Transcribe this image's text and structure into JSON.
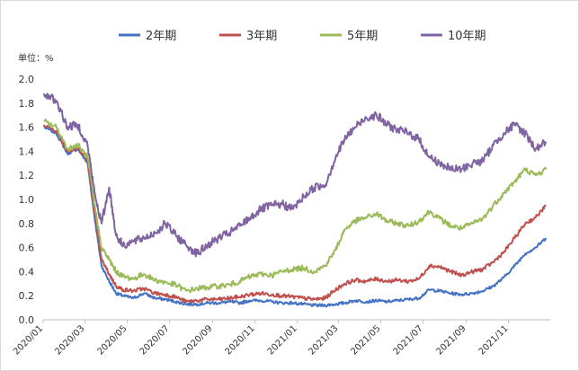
{
  "chart_data": {
    "type": "line",
    "unit_label": "单位：%",
    "ylim": [
      0,
      2.0
    ],
    "y_ticks": [
      "0.0",
      "0.2",
      "0.4",
      "0.6",
      "0.8",
      "1.0",
      "1.2",
      "1.4",
      "1.6",
      "1.8",
      "2.0"
    ],
    "x_start": "2020-01",
    "x_end": "2021-12",
    "x_ticks": [
      "2020/01",
      "2020/03",
      "2020/05",
      "2020/07",
      "2020/09",
      "2020/11",
      "2021/01",
      "2021/03",
      "2021/05",
      "2021/07",
      "2021/09",
      "2021/11"
    ],
    "grid": false,
    "legend_position": "top",
    "series": [
      {
        "name": "2年期",
        "color": "#4472C4",
        "points": [
          [
            "2020-01-02",
            1.6
          ],
          [
            "2020-01-20",
            1.55
          ],
          [
            "2020-02-05",
            1.38
          ],
          [
            "2020-02-20",
            1.42
          ],
          [
            "2020-03-05",
            1.3
          ],
          [
            "2020-03-15",
            0.85
          ],
          [
            "2020-03-25",
            0.45
          ],
          [
            "2020-04-05",
            0.32
          ],
          [
            "2020-04-15",
            0.22
          ],
          [
            "2020-04-25",
            0.2
          ],
          [
            "2020-05-10",
            0.18
          ],
          [
            "2020-05-25",
            0.22
          ],
          [
            "2020-06-10",
            0.18
          ],
          [
            "2020-06-25",
            0.17
          ],
          [
            "2020-07-10",
            0.15
          ],
          [
            "2020-07-25",
            0.13
          ],
          [
            "2020-08-10",
            0.13
          ],
          [
            "2020-08-25",
            0.14
          ],
          [
            "2020-09-10",
            0.14
          ],
          [
            "2020-09-25",
            0.15
          ],
          [
            "2020-10-10",
            0.14
          ],
          [
            "2020-10-25",
            0.16
          ],
          [
            "2020-11-10",
            0.16
          ],
          [
            "2020-11-25",
            0.15
          ],
          [
            "2020-12-10",
            0.14
          ],
          [
            "2020-12-25",
            0.14
          ],
          [
            "2021-01-10",
            0.13
          ],
          [
            "2021-01-25",
            0.12
          ],
          [
            "2021-02-10",
            0.12
          ],
          [
            "2021-02-25",
            0.13
          ],
          [
            "2021-03-10",
            0.14
          ],
          [
            "2021-03-25",
            0.16
          ],
          [
            "2021-04-10",
            0.15
          ],
          [
            "2021-04-25",
            0.16
          ],
          [
            "2021-05-10",
            0.15
          ],
          [
            "2021-05-25",
            0.16
          ],
          [
            "2021-06-10",
            0.17
          ],
          [
            "2021-06-25",
            0.18
          ],
          [
            "2021-07-10",
            0.25
          ],
          [
            "2021-07-25",
            0.24
          ],
          [
            "2021-08-10",
            0.22
          ],
          [
            "2021-08-25",
            0.21
          ],
          [
            "2021-09-10",
            0.22
          ],
          [
            "2021-09-25",
            0.24
          ],
          [
            "2021-10-10",
            0.28
          ],
          [
            "2021-10-25",
            0.35
          ],
          [
            "2021-11-10",
            0.45
          ],
          [
            "2021-11-25",
            0.55
          ],
          [
            "2021-12-10",
            0.6
          ],
          [
            "2021-12-25",
            0.68
          ]
        ]
      },
      {
        "name": "3年期",
        "color": "#C0504D",
        "points": [
          [
            "2020-01-02",
            1.62
          ],
          [
            "2020-01-20",
            1.57
          ],
          [
            "2020-02-05",
            1.4
          ],
          [
            "2020-02-20",
            1.43
          ],
          [
            "2020-03-05",
            1.32
          ],
          [
            "2020-03-15",
            0.9
          ],
          [
            "2020-03-25",
            0.5
          ],
          [
            "2020-04-05",
            0.38
          ],
          [
            "2020-04-15",
            0.28
          ],
          [
            "2020-04-25",
            0.25
          ],
          [
            "2020-05-10",
            0.24
          ],
          [
            "2020-05-25",
            0.26
          ],
          [
            "2020-06-10",
            0.22
          ],
          [
            "2020-06-25",
            0.21
          ],
          [
            "2020-07-10",
            0.19
          ],
          [
            "2020-07-25",
            0.15
          ],
          [
            "2020-08-10",
            0.16
          ],
          [
            "2020-08-25",
            0.17
          ],
          [
            "2020-09-10",
            0.17
          ],
          [
            "2020-09-25",
            0.18
          ],
          [
            "2020-10-10",
            0.19
          ],
          [
            "2020-10-25",
            0.21
          ],
          [
            "2020-11-10",
            0.22
          ],
          [
            "2020-11-25",
            0.21
          ],
          [
            "2020-12-10",
            0.2
          ],
          [
            "2020-12-25",
            0.19
          ],
          [
            "2021-01-10",
            0.18
          ],
          [
            "2021-01-25",
            0.17
          ],
          [
            "2021-02-10",
            0.18
          ],
          [
            "2021-02-25",
            0.25
          ],
          [
            "2021-03-10",
            0.3
          ],
          [
            "2021-03-25",
            0.33
          ],
          [
            "2021-04-10",
            0.32
          ],
          [
            "2021-04-25",
            0.34
          ],
          [
            "2021-05-10",
            0.32
          ],
          [
            "2021-05-25",
            0.33
          ],
          [
            "2021-06-10",
            0.32
          ],
          [
            "2021-06-25",
            0.34
          ],
          [
            "2021-07-10",
            0.45
          ],
          [
            "2021-07-25",
            0.44
          ],
          [
            "2021-08-10",
            0.4
          ],
          [
            "2021-08-25",
            0.37
          ],
          [
            "2021-09-10",
            0.4
          ],
          [
            "2021-09-25",
            0.42
          ],
          [
            "2021-10-10",
            0.48
          ],
          [
            "2021-10-25",
            0.56
          ],
          [
            "2021-11-10",
            0.68
          ],
          [
            "2021-11-25",
            0.8
          ],
          [
            "2021-12-10",
            0.85
          ],
          [
            "2021-12-25",
            0.95
          ]
        ]
      },
      {
        "name": "5年期",
        "color": "#9BBB59",
        "points": [
          [
            "2020-01-02",
            1.65
          ],
          [
            "2020-01-20",
            1.6
          ],
          [
            "2020-02-05",
            1.42
          ],
          [
            "2020-02-20",
            1.45
          ],
          [
            "2020-03-05",
            1.35
          ],
          [
            "2020-03-15",
            0.95
          ],
          [
            "2020-03-25",
            0.6
          ],
          [
            "2020-04-05",
            0.5
          ],
          [
            "2020-04-15",
            0.4
          ],
          [
            "2020-04-25",
            0.36
          ],
          [
            "2020-05-10",
            0.34
          ],
          [
            "2020-05-25",
            0.38
          ],
          [
            "2020-06-10",
            0.33
          ],
          [
            "2020-06-25",
            0.31
          ],
          [
            "2020-07-10",
            0.29
          ],
          [
            "2020-07-25",
            0.24
          ],
          [
            "2020-08-10",
            0.26
          ],
          [
            "2020-08-25",
            0.27
          ],
          [
            "2020-09-10",
            0.28
          ],
          [
            "2020-09-25",
            0.29
          ],
          [
            "2020-10-10",
            0.32
          ],
          [
            "2020-10-25",
            0.36
          ],
          [
            "2020-11-10",
            0.38
          ],
          [
            "2020-11-25",
            0.37
          ],
          [
            "2020-12-10",
            0.4
          ],
          [
            "2020-12-25",
            0.42
          ],
          [
            "2021-01-10",
            0.43
          ],
          [
            "2021-01-25",
            0.4
          ],
          [
            "2021-02-10",
            0.45
          ],
          [
            "2021-02-25",
            0.58
          ],
          [
            "2021-03-10",
            0.75
          ],
          [
            "2021-03-25",
            0.82
          ],
          [
            "2021-04-10",
            0.85
          ],
          [
            "2021-04-25",
            0.88
          ],
          [
            "2021-05-10",
            0.82
          ],
          [
            "2021-05-25",
            0.8
          ],
          [
            "2021-06-10",
            0.78
          ],
          [
            "2021-06-25",
            0.82
          ],
          [
            "2021-07-10",
            0.9
          ],
          [
            "2021-07-25",
            0.84
          ],
          [
            "2021-08-10",
            0.78
          ],
          [
            "2021-08-25",
            0.76
          ],
          [
            "2021-09-10",
            0.8
          ],
          [
            "2021-09-25",
            0.84
          ],
          [
            "2021-10-10",
            0.95
          ],
          [
            "2021-10-25",
            1.05
          ],
          [
            "2021-11-10",
            1.15
          ],
          [
            "2021-11-25",
            1.25
          ],
          [
            "2021-12-10",
            1.2
          ],
          [
            "2021-12-25",
            1.25
          ]
        ]
      },
      {
        "name": "10年期",
        "color": "#8064A2",
        "points": [
          [
            "2020-01-02",
            1.88
          ],
          [
            "2020-01-20",
            1.82
          ],
          [
            "2020-02-05",
            1.6
          ],
          [
            "2020-02-20",
            1.62
          ],
          [
            "2020-03-05",
            1.45
          ],
          [
            "2020-03-15",
            1.05
          ],
          [
            "2020-03-25",
            0.8
          ],
          [
            "2020-04-05",
            1.1
          ],
          [
            "2020-04-15",
            0.7
          ],
          [
            "2020-04-25",
            0.62
          ],
          [
            "2020-05-10",
            0.65
          ],
          [
            "2020-05-25",
            0.68
          ],
          [
            "2020-06-10",
            0.72
          ],
          [
            "2020-06-25",
            0.8
          ],
          [
            "2020-07-10",
            0.7
          ],
          [
            "2020-07-25",
            0.62
          ],
          [
            "2020-08-10",
            0.55
          ],
          [
            "2020-08-25",
            0.62
          ],
          [
            "2020-09-10",
            0.68
          ],
          [
            "2020-09-25",
            0.72
          ],
          [
            "2020-10-10",
            0.78
          ],
          [
            "2020-10-25",
            0.85
          ],
          [
            "2020-11-10",
            0.92
          ],
          [
            "2020-11-25",
            0.95
          ],
          [
            "2020-12-10",
            0.96
          ],
          [
            "2020-12-25",
            0.92
          ],
          [
            "2021-01-10",
            1.02
          ],
          [
            "2021-01-25",
            1.1
          ],
          [
            "2021-02-10",
            1.12
          ],
          [
            "2021-02-25",
            1.35
          ],
          [
            "2021-03-10",
            1.5
          ],
          [
            "2021-03-25",
            1.6
          ],
          [
            "2021-04-10",
            1.68
          ],
          [
            "2021-04-25",
            1.7
          ],
          [
            "2021-05-10",
            1.62
          ],
          [
            "2021-05-25",
            1.58
          ],
          [
            "2021-06-10",
            1.55
          ],
          [
            "2021-06-25",
            1.5
          ],
          [
            "2021-07-10",
            1.35
          ],
          [
            "2021-07-25",
            1.3
          ],
          [
            "2021-08-10",
            1.25
          ],
          [
            "2021-08-25",
            1.25
          ],
          [
            "2021-09-10",
            1.3
          ],
          [
            "2021-09-25",
            1.32
          ],
          [
            "2021-10-10",
            1.45
          ],
          [
            "2021-10-25",
            1.55
          ],
          [
            "2021-11-10",
            1.62
          ],
          [
            "2021-11-25",
            1.55
          ],
          [
            "2021-12-10",
            1.42
          ],
          [
            "2021-12-25",
            1.48
          ]
        ]
      }
    ]
  }
}
